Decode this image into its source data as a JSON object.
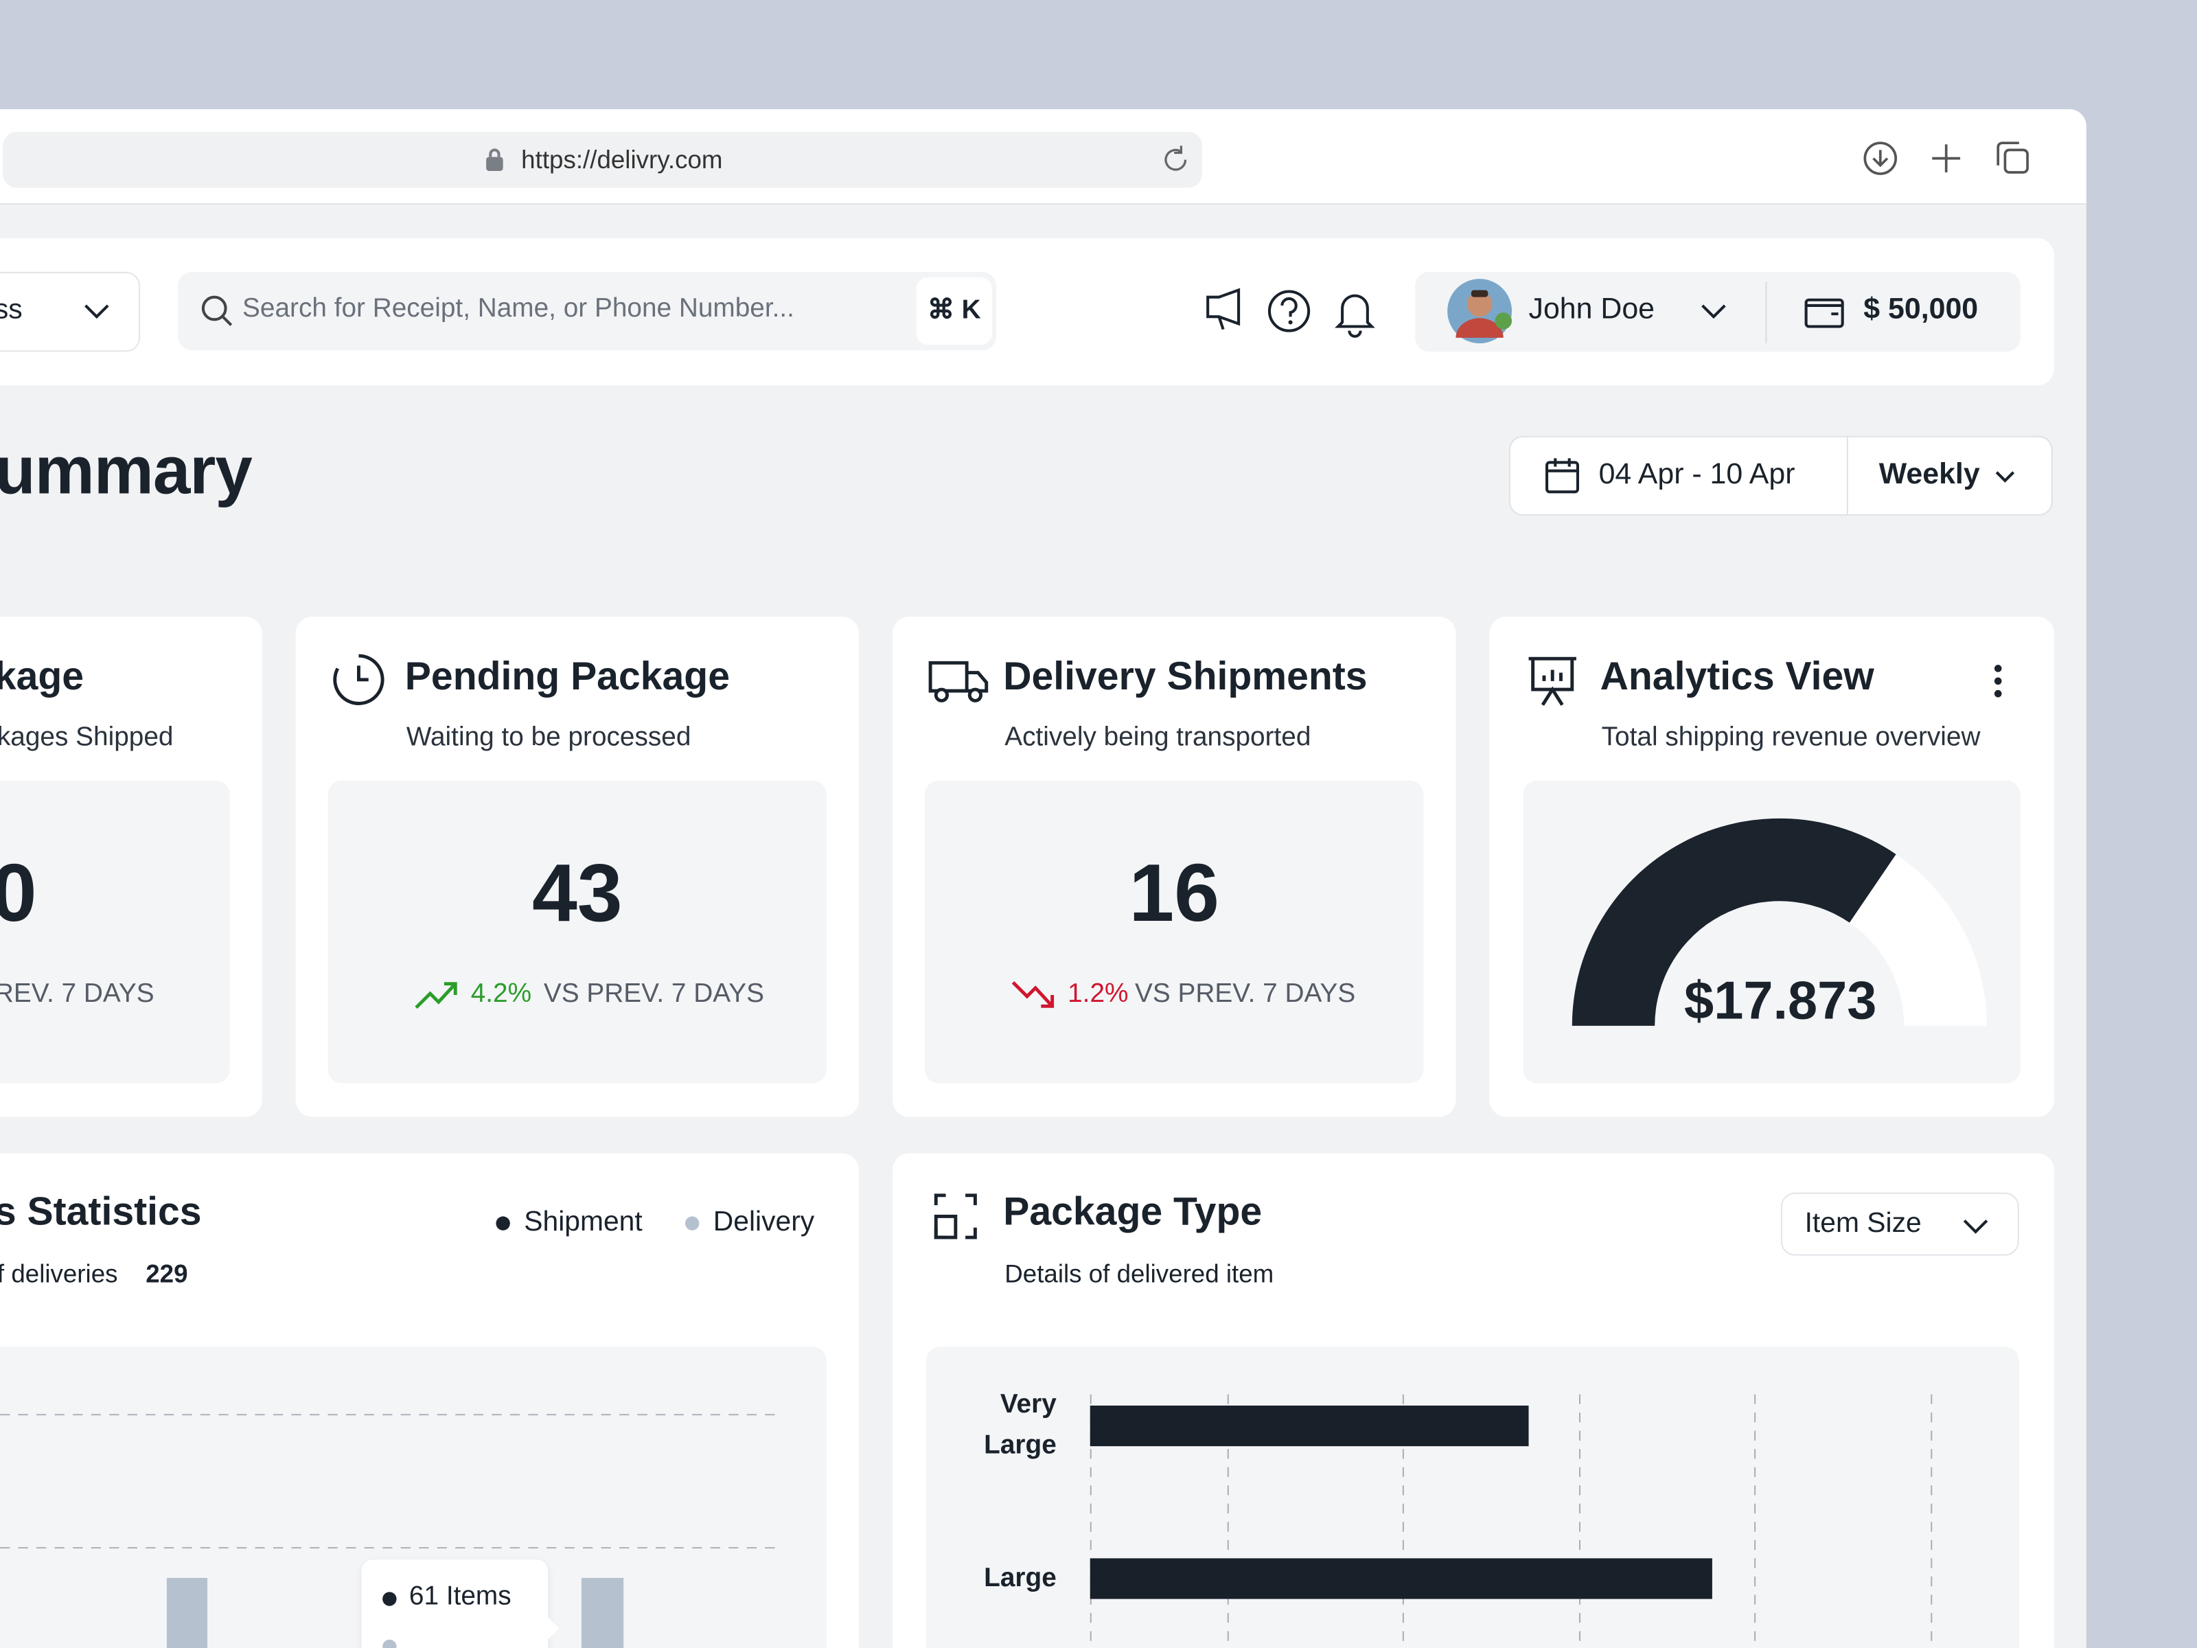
{
  "browser": {
    "url": "https://delivry.com"
  },
  "header": {
    "filter_fragment": "ss",
    "search_placeholder": "Search for Receipt, Name, or Phone Number...",
    "shortcut": "⌘ K",
    "user_name": "John Doe",
    "balance": "$ 50,000"
  },
  "summary": {
    "title_fragment": "ummary",
    "date_range": "04 Apr - 10 Apr",
    "period": "Weekly"
  },
  "cards": [
    {
      "title": "kage",
      "subtitle": "kages Shipped",
      "value": 0,
      "change_label": "REV. 7 DAYS"
    },
    {
      "title": "Pending Package",
      "subtitle": "Waiting to be processed",
      "value": 43,
      "change": "4.2%",
      "change_label": "VS PREV. 7 DAYS"
    },
    {
      "title": "Delivery Shipments",
      "subtitle": "Actively being transported",
      "value": 16,
      "change": "1.2%",
      "change_label": "VS PREV. 7 DAYS"
    }
  ],
  "analytics": {
    "title": "Analytics View",
    "subtitle": "Total shipping revenue overview",
    "amount": "$17.873",
    "gauge_percent": 69
  },
  "statistics": {
    "title_fragment": "s Statistics",
    "legend": [
      "Shipment",
      "Delivery"
    ],
    "total_label": "f deliveries",
    "total": 229,
    "tooltip": "61 Items"
  },
  "package_type": {
    "title": "Package Type",
    "subtitle": "Details of delivered item",
    "filter": "Item Size",
    "xlim": [
      0,
      600
    ],
    "categories": [
      "Very Large",
      "Large"
    ],
    "values": [
      313,
      444
    ]
  }
}
